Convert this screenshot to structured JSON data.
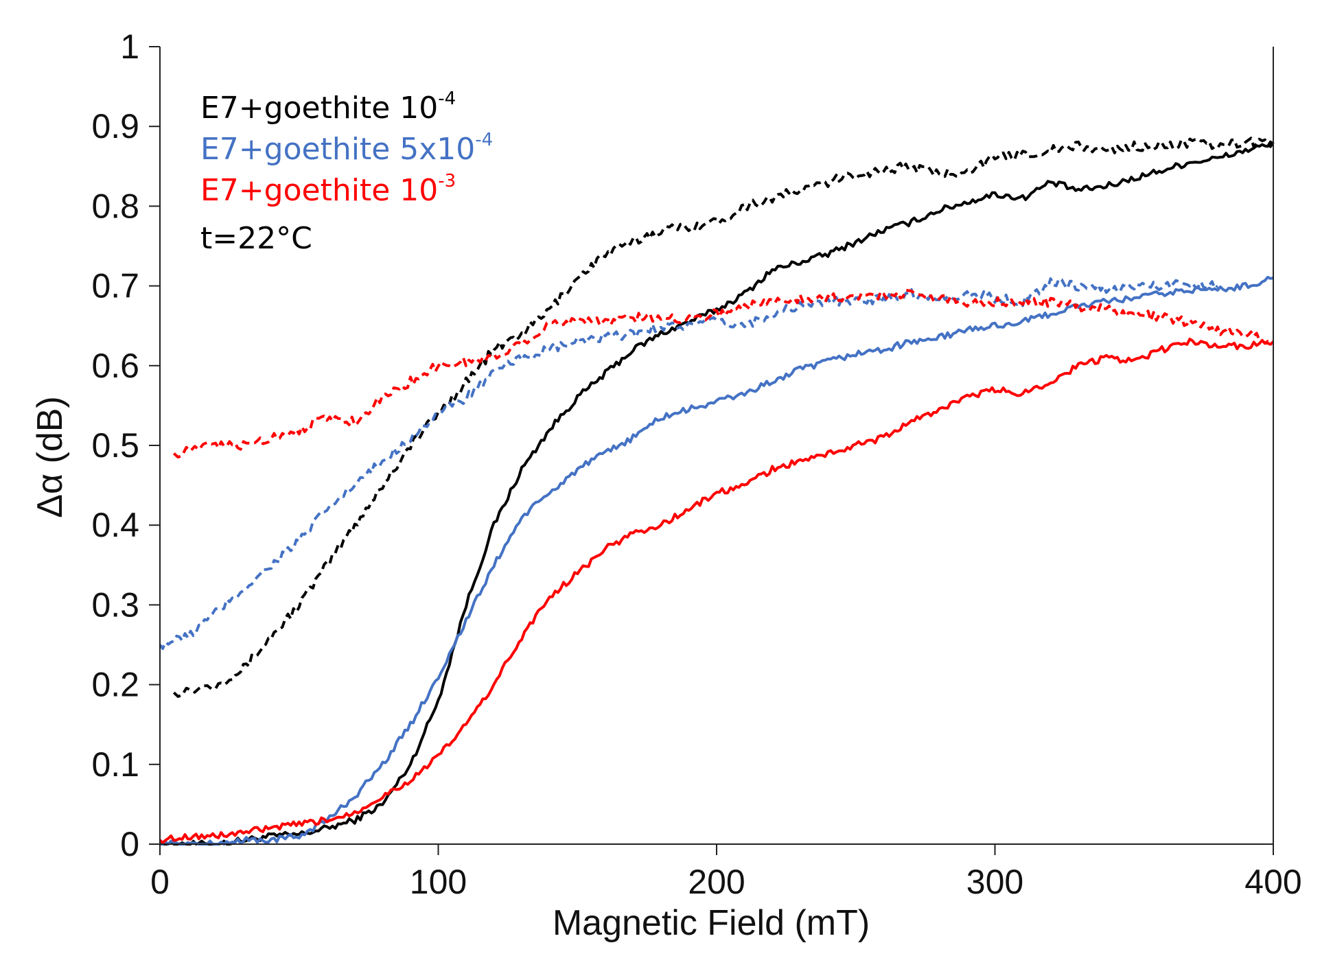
{
  "chart_data": {
    "type": "line",
    "title": "",
    "xlabel": "Magnetic Field (mT)",
    "ylabel": "Δα (dB)",
    "xlim": [
      0,
      400
    ],
    "ylim": [
      0,
      1
    ],
    "xticks": [
      0,
      100,
      200,
      300,
      400
    ],
    "yticks": [
      0,
      0.1,
      0.2,
      0.3,
      0.4,
      0.5,
      0.6,
      0.7,
      0.8,
      0.9,
      1
    ],
    "xtick_labels": [
      "0",
      "100",
      "200",
      "300",
      "400"
    ],
    "ytick_labels": [
      "0",
      "0.1",
      "0.2",
      "0.3",
      "0.4",
      "0.5",
      "0.6",
      "0.7",
      "0.8",
      "0.9",
      "1"
    ],
    "grid": false,
    "legend_position": "top-left",
    "annotation": "t=22°C",
    "legend": [
      {
        "base": "E7+goethite 10",
        "exponent": "-4",
        "color": "#000000"
      },
      {
        "base": "E7+goethite 5x10",
        "exponent": "-4",
        "color": "#4472c4"
      },
      {
        "base": "E7+goethite 10",
        "exponent": "-3",
        "color": "#ff0000"
      }
    ],
    "series": [
      {
        "name": "E7+goethite 10^-4 (solid)",
        "color": "#000000",
        "style": "solid",
        "x": [
          0,
          10,
          20,
          30,
          40,
          50,
          60,
          70,
          80,
          90,
          100,
          110,
          120,
          130,
          140,
          150,
          160,
          170,
          180,
          190,
          200,
          210,
          220,
          230,
          240,
          250,
          260,
          270,
          280,
          290,
          300,
          310,
          320,
          330,
          340,
          350,
          360,
          370,
          380,
          390,
          400
        ],
        "y": [
          0.0,
          0.0,
          0.0,
          0.005,
          0.01,
          0.012,
          0.02,
          0.03,
          0.05,
          0.1,
          0.18,
          0.3,
          0.4,
          0.47,
          0.52,
          0.56,
          0.59,
          0.62,
          0.64,
          0.655,
          0.67,
          0.69,
          0.72,
          0.73,
          0.74,
          0.755,
          0.77,
          0.78,
          0.795,
          0.805,
          0.815,
          0.81,
          0.83,
          0.82,
          0.825,
          0.835,
          0.845,
          0.855,
          0.86,
          0.87,
          0.878
        ]
      },
      {
        "name": "E7+goethite 10^-4 (dashed)",
        "color": "#000000",
        "style": "dashed",
        "x": [
          5,
          20,
          30,
          40,
          50,
          60,
          70,
          80,
          90,
          100,
          110,
          120,
          130,
          140,
          150,
          160,
          170,
          180,
          190,
          200,
          210,
          220,
          230,
          240,
          250,
          260,
          270,
          280,
          290,
          300,
          310,
          320,
          330,
          340,
          350,
          360,
          370,
          380,
          390,
          400
        ],
        "y": [
          0.19,
          0.2,
          0.22,
          0.26,
          0.3,
          0.35,
          0.4,
          0.45,
          0.5,
          0.54,
          0.58,
          0.62,
          0.64,
          0.67,
          0.71,
          0.74,
          0.755,
          0.77,
          0.775,
          0.78,
          0.8,
          0.81,
          0.82,
          0.83,
          0.84,
          0.845,
          0.85,
          0.84,
          0.845,
          0.86,
          0.865,
          0.87,
          0.875,
          0.87,
          0.875,
          0.875,
          0.88,
          0.875,
          0.88,
          0.88
        ]
      },
      {
        "name": "E7+goethite 5x10^-4 (solid)",
        "color": "#4472c4",
        "style": "solid",
        "x": [
          0,
          10,
          20,
          30,
          40,
          50,
          60,
          70,
          80,
          90,
          100,
          110,
          120,
          130,
          140,
          150,
          160,
          170,
          180,
          190,
          200,
          210,
          220,
          230,
          240,
          250,
          260,
          270,
          280,
          290,
          300,
          310,
          320,
          330,
          340,
          350,
          360,
          370,
          380,
          390,
          400
        ],
        "y": [
          0.0,
          0.0,
          0.0,
          0.005,
          0.005,
          0.01,
          0.03,
          0.06,
          0.1,
          0.15,
          0.21,
          0.28,
          0.35,
          0.41,
          0.44,
          0.47,
          0.49,
          0.51,
          0.535,
          0.545,
          0.555,
          0.565,
          0.58,
          0.595,
          0.605,
          0.615,
          0.62,
          0.63,
          0.635,
          0.645,
          0.65,
          0.655,
          0.665,
          0.675,
          0.68,
          0.685,
          0.69,
          0.695,
          0.695,
          0.7,
          0.71
        ]
      },
      {
        "name": "E7+goethite 5x10^-4 (dashed)",
        "color": "#4472c4",
        "style": "dashed",
        "x": [
          0,
          10,
          20,
          30,
          40,
          50,
          60,
          70,
          80,
          90,
          100,
          110,
          120,
          130,
          140,
          150,
          160,
          170,
          180,
          190,
          200,
          210,
          220,
          230,
          240,
          250,
          260,
          270,
          280,
          290,
          300,
          310,
          320,
          330,
          340,
          350,
          360,
          370,
          380
        ],
        "y": [
          0.25,
          0.26,
          0.29,
          0.32,
          0.35,
          0.38,
          0.42,
          0.45,
          0.48,
          0.51,
          0.54,
          0.56,
          0.59,
          0.61,
          0.62,
          0.63,
          0.635,
          0.64,
          0.65,
          0.65,
          0.655,
          0.65,
          0.665,
          0.675,
          0.68,
          0.68,
          0.685,
          0.69,
          0.685,
          0.69,
          0.685,
          0.68,
          0.705,
          0.7,
          0.695,
          0.7,
          0.7,
          0.705,
          0.7
        ]
      },
      {
        "name": "E7+goethite 10^-3 (solid)",
        "color": "#ff0000",
        "style": "solid",
        "x": [
          0,
          10,
          20,
          30,
          40,
          50,
          60,
          70,
          80,
          90,
          100,
          110,
          120,
          130,
          140,
          150,
          160,
          170,
          180,
          190,
          200,
          210,
          220,
          230,
          240,
          250,
          260,
          270,
          280,
          290,
          300,
          310,
          320,
          330,
          340,
          350,
          360,
          370,
          380,
          390,
          400
        ],
        "y": [
          0.005,
          0.01,
          0.01,
          0.015,
          0.02,
          0.025,
          0.03,
          0.04,
          0.06,
          0.08,
          0.11,
          0.15,
          0.2,
          0.26,
          0.31,
          0.34,
          0.37,
          0.39,
          0.4,
          0.42,
          0.44,
          0.45,
          0.47,
          0.48,
          0.49,
          0.5,
          0.51,
          0.53,
          0.545,
          0.56,
          0.57,
          0.565,
          0.58,
          0.6,
          0.61,
          0.605,
          0.62,
          0.63,
          0.625,
          0.625,
          0.63
        ]
      },
      {
        "name": "E7+goethite 10^-3 (dashed)",
        "color": "#ff0000",
        "style": "dashed",
        "x": [
          5,
          20,
          30,
          40,
          50,
          60,
          70,
          80,
          90,
          100,
          110,
          120,
          130,
          140,
          150,
          160,
          170,
          180,
          190,
          200,
          210,
          220,
          230,
          240,
          250,
          260,
          270,
          280,
          290,
          300,
          310,
          320,
          330,
          340,
          350,
          360,
          370,
          380,
          390,
          400
        ],
        "y": [
          0.49,
          0.5,
          0.5,
          0.51,
          0.52,
          0.535,
          0.53,
          0.56,
          0.58,
          0.6,
          0.605,
          0.61,
          0.63,
          0.65,
          0.66,
          0.655,
          0.66,
          0.66,
          0.66,
          0.665,
          0.675,
          0.68,
          0.685,
          0.685,
          0.685,
          0.69,
          0.69,
          0.685,
          0.68,
          0.68,
          0.68,
          0.68,
          0.675,
          0.67,
          0.665,
          0.66,
          0.655,
          0.645,
          0.64,
          0.63
        ]
      }
    ]
  }
}
